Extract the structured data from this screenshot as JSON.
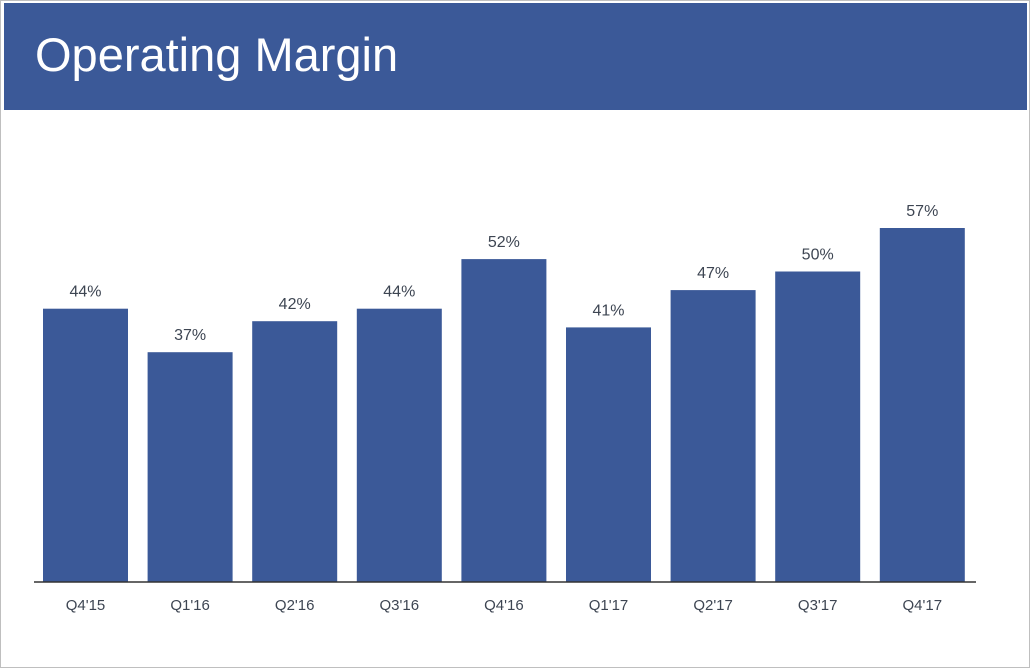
{
  "slide": {
    "title": "Operating Margin"
  },
  "colors": {
    "header": "#3b5998",
    "bar": "#3b5998",
    "axis": "#333333",
    "text": "#3d4552"
  },
  "chart_data": {
    "type": "bar",
    "title": "Operating Margin",
    "xlabel": "",
    "ylabel": "",
    "categories": [
      "Q4'15",
      "Q1'16",
      "Q2'16",
      "Q3'16",
      "Q4'16",
      "Q1'17",
      "Q2'17",
      "Q3'17",
      "Q4'17"
    ],
    "values": [
      44,
      37,
      42,
      44,
      52,
      41,
      47,
      50,
      57
    ],
    "value_labels": [
      "44%",
      "37%",
      "42%",
      "44%",
      "52%",
      "41%",
      "47%",
      "50%",
      "57%"
    ],
    "ylim": [
      0,
      57
    ],
    "grid": false,
    "legend": "none"
  }
}
